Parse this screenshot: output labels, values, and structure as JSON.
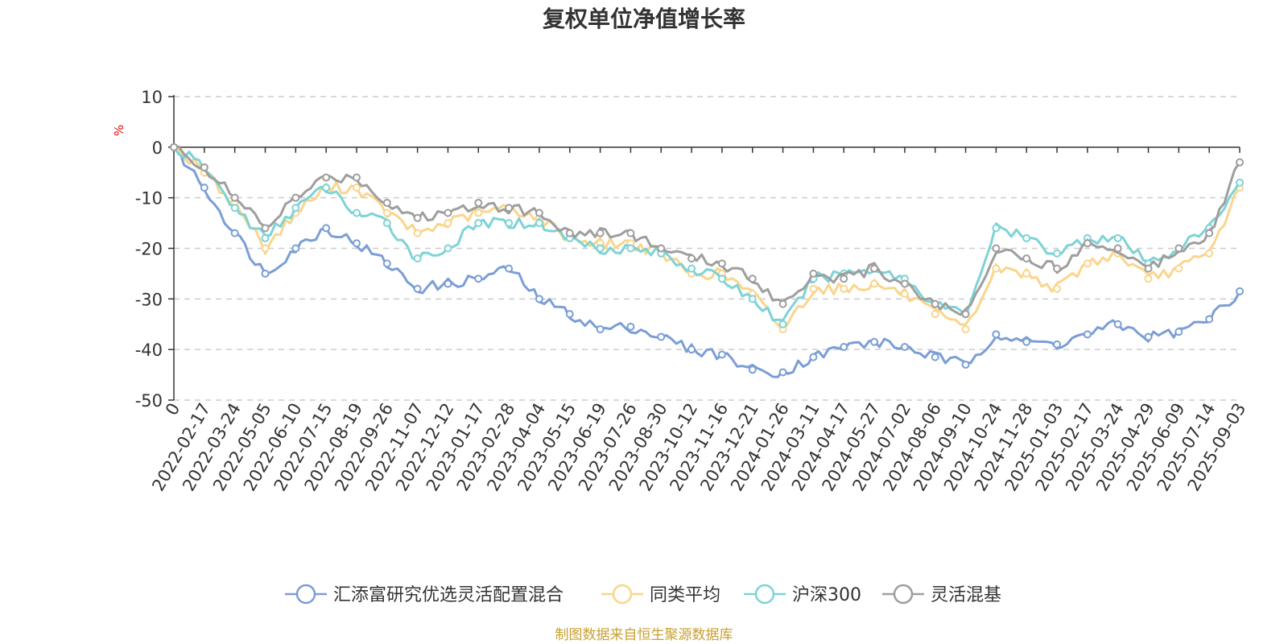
{
  "chart_data": {
    "type": "line",
    "title": "复权单位净值增长率",
    "ylabel": "%",
    "ylim": [
      -50,
      10
    ],
    "yticks": [
      10,
      0,
      -10,
      -20,
      -30,
      -40,
      -50
    ],
    "grid": true,
    "legend_position": "bottom",
    "x_labels": [
      "0",
      "2022-02-17",
      "2022-03-24",
      "2022-05-05",
      "2022-06-10",
      "2022-07-15",
      "2022-08-19",
      "2022-09-26",
      "2022-11-07",
      "2022-12-12",
      "2023-01-17",
      "2023-02-28",
      "2023-04-04",
      "2023-05-15",
      "2023-06-19",
      "2023-07-26",
      "2023-08-30",
      "2023-10-12",
      "2023-11-16",
      "2023-12-21",
      "2024-01-26",
      "2024-03-11",
      "2024-04-17",
      "2024-05-27",
      "2024-07-02",
      "2024-08-06",
      "2024-09-10",
      "2024-10-24",
      "2024-11-28",
      "2025-01-03",
      "2025-02-17",
      "2025-03-24",
      "2025-04-29",
      "2025-06-09",
      "2025-07-14",
      "2025-09-03"
    ],
    "series": [
      {
        "name": "汇添富研究优选灵活配置混合",
        "color": "#7b9ed6",
        "values": [
          0,
          -8,
          -17,
          -25,
          -20,
          -16,
          -19,
          -23,
          -28,
          -27,
          -26,
          -24,
          -30,
          -33,
          -36,
          -35.5,
          -37.5,
          -40,
          -41,
          -44,
          -44.5,
          -41.5,
          -39.5,
          -38.5,
          -39.5,
          -41.5,
          -43,
          -37,
          -38.5,
          -39,
          -37,
          -35,
          -37.5,
          -36.5,
          -34,
          -28.5
        ]
      },
      {
        "name": "同类平均",
        "color": "#fad58c",
        "values": [
          0,
          -5,
          -11,
          -20,
          -13,
          -8,
          -8,
          -13,
          -17,
          -15,
          -13,
          -12,
          -14,
          -18,
          -19,
          -19,
          -21,
          -25,
          -25,
          -29,
          -36,
          -28,
          -28,
          -27,
          -29,
          -33,
          -36,
          -24,
          -25,
          -28,
          -23,
          -21,
          -26,
          -24,
          -21,
          -8
        ]
      },
      {
        "name": "沪深300",
        "color": "#7dd3d6",
        "values": [
          0,
          -4,
          -12,
          -18,
          -12,
          -8,
          -13,
          -15,
          -22,
          -20,
          -15,
          -15,
          -15,
          -18,
          -20,
          -20,
          -21,
          -24,
          -26,
          -30,
          -35,
          -26,
          -25,
          -24,
          -26,
          -31,
          -33,
          -16,
          -18,
          -21,
          -18,
          -18,
          -23,
          -20,
          -16,
          -7
        ]
      },
      {
        "name": "灵活混基",
        "color": "#9e9e9e",
        "values": [
          0,
          -4,
          -10,
          -16,
          -10,
          -6,
          -6,
          -11,
          -14,
          -13,
          -11,
          -12,
          -13,
          -17,
          -17,
          -17,
          -20,
          -22,
          -23,
          -26,
          -31,
          -25,
          -26,
          -24,
          -27,
          -31,
          -33,
          -20,
          -22,
          -24,
          -19,
          -20,
          -24,
          -20,
          -17,
          -3
        ]
      }
    ]
  },
  "legend": {
    "items": [
      {
        "label": "汇添富研究优选灵活配置混合",
        "color": "#7b9ed6"
      },
      {
        "label": "同类平均",
        "color": "#fad58c"
      },
      {
        "label": "沪深300",
        "color": "#7dd3d6"
      },
      {
        "label": "灵活混基",
        "color": "#9e9e9e"
      }
    ]
  },
  "source_note": "制图数据来自恒生聚源数据库"
}
